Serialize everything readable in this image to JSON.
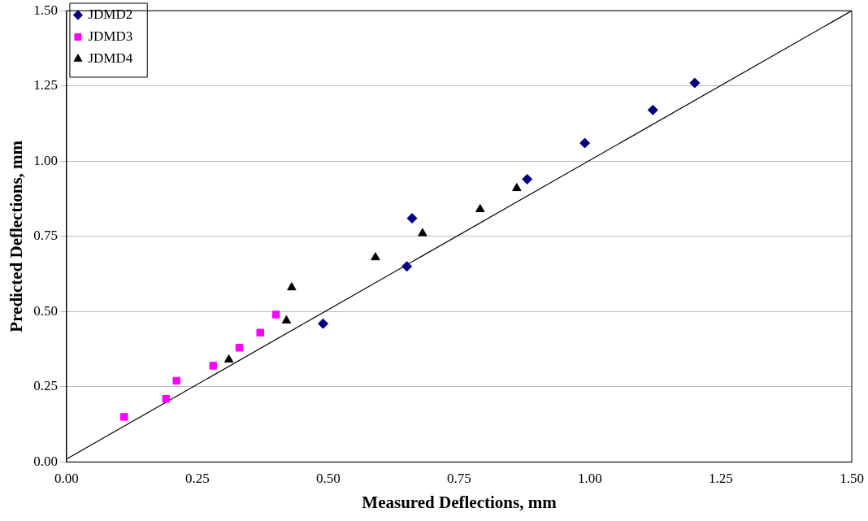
{
  "chart_data": {
    "type": "scatter",
    "xlabel": "Measured Deflections, mm",
    "ylabel": "Predicted Deflections, mm",
    "xlim": [
      0,
      1.5
    ],
    "ylim": [
      0,
      1.5
    ],
    "xticks": [
      {
        "value": 0,
        "label": "0.00"
      },
      {
        "value": 0.25,
        "label": "0.25"
      },
      {
        "value": 0.5,
        "label": "0.50"
      },
      {
        "value": 0.75,
        "label": "0.75"
      },
      {
        "value": 1,
        "label": "1.00"
      },
      {
        "value": 1.25,
        "label": "1.25"
      },
      {
        "value": 1.5,
        "label": "1.50"
      }
    ],
    "yticks": [
      {
        "value": 0,
        "label": "0.00"
      },
      {
        "value": 0.25,
        "label": "0.25"
      },
      {
        "value": 0.5,
        "label": "0.50"
      },
      {
        "value": 0.75,
        "label": "0.75"
      },
      {
        "value": 1,
        "label": "1.00"
      },
      {
        "value": 1.25,
        "label": "1.25"
      },
      {
        "value": 1.5,
        "label": "1.50"
      }
    ],
    "grid": "y",
    "legend": "top left",
    "series": [
      {
        "name": "JDMD2",
        "color": "#000080",
        "marker": "diamond",
        "x": [
          0.49,
          0.65,
          0.66,
          0.88,
          0.99,
          1.12,
          1.2
        ],
        "values": [
          0.46,
          0.65,
          0.81,
          0.94,
          1.06,
          1.17,
          1.26
        ]
      },
      {
        "name": "JDMD3",
        "color": "#ff00ff",
        "marker": "square",
        "x": [
          0.11,
          0.19,
          0.21,
          0.28,
          0.33,
          0.37,
          0.4
        ],
        "values": [
          0.15,
          0.21,
          0.27,
          0.32,
          0.38,
          0.43,
          0.49
        ]
      },
      {
        "name": "JDMD4",
        "color": "#000000",
        "marker": "triangle",
        "x": [
          0.31,
          0.42,
          0.43,
          0.59,
          0.68,
          0.79,
          0.86
        ],
        "values": [
          0.34,
          0.47,
          0.58,
          0.68,
          0.76,
          0.84,
          0.91
        ]
      },
      {
        "type": "line",
        "color": "#000000",
        "marker": "none",
        "x": [
          0,
          1.5
        ],
        "values": [
          0.01,
          1.5
        ]
      }
    ]
  }
}
